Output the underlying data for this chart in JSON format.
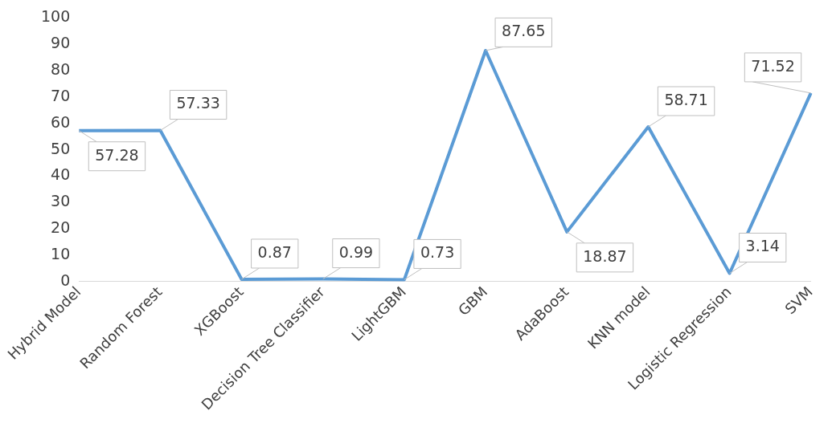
{
  "chart_data": {
    "type": "line",
    "categories": [
      "Hybrid Model",
      "Random Forest",
      "XGBoost",
      "Decision Tree Classifier",
      "LightGBM",
      "GBM",
      "AdaBoost",
      "KNN model",
      "Logistic Regression",
      "SVM"
    ],
    "series": [
      {
        "color": "#5b9bd5",
        "values": [
          57.28,
          57.33,
          0.87,
          0.99,
          0.73,
          87.65,
          18.87,
          58.71,
          3.14,
          71.52
        ]
      }
    ],
    "ylim": [
      0,
      100
    ],
    "yticks": [
      0,
      10,
      20,
      30,
      40,
      50,
      60,
      70,
      80,
      90,
      100
    ],
    "grid": false,
    "legend": false,
    "data_labels": true
  }
}
